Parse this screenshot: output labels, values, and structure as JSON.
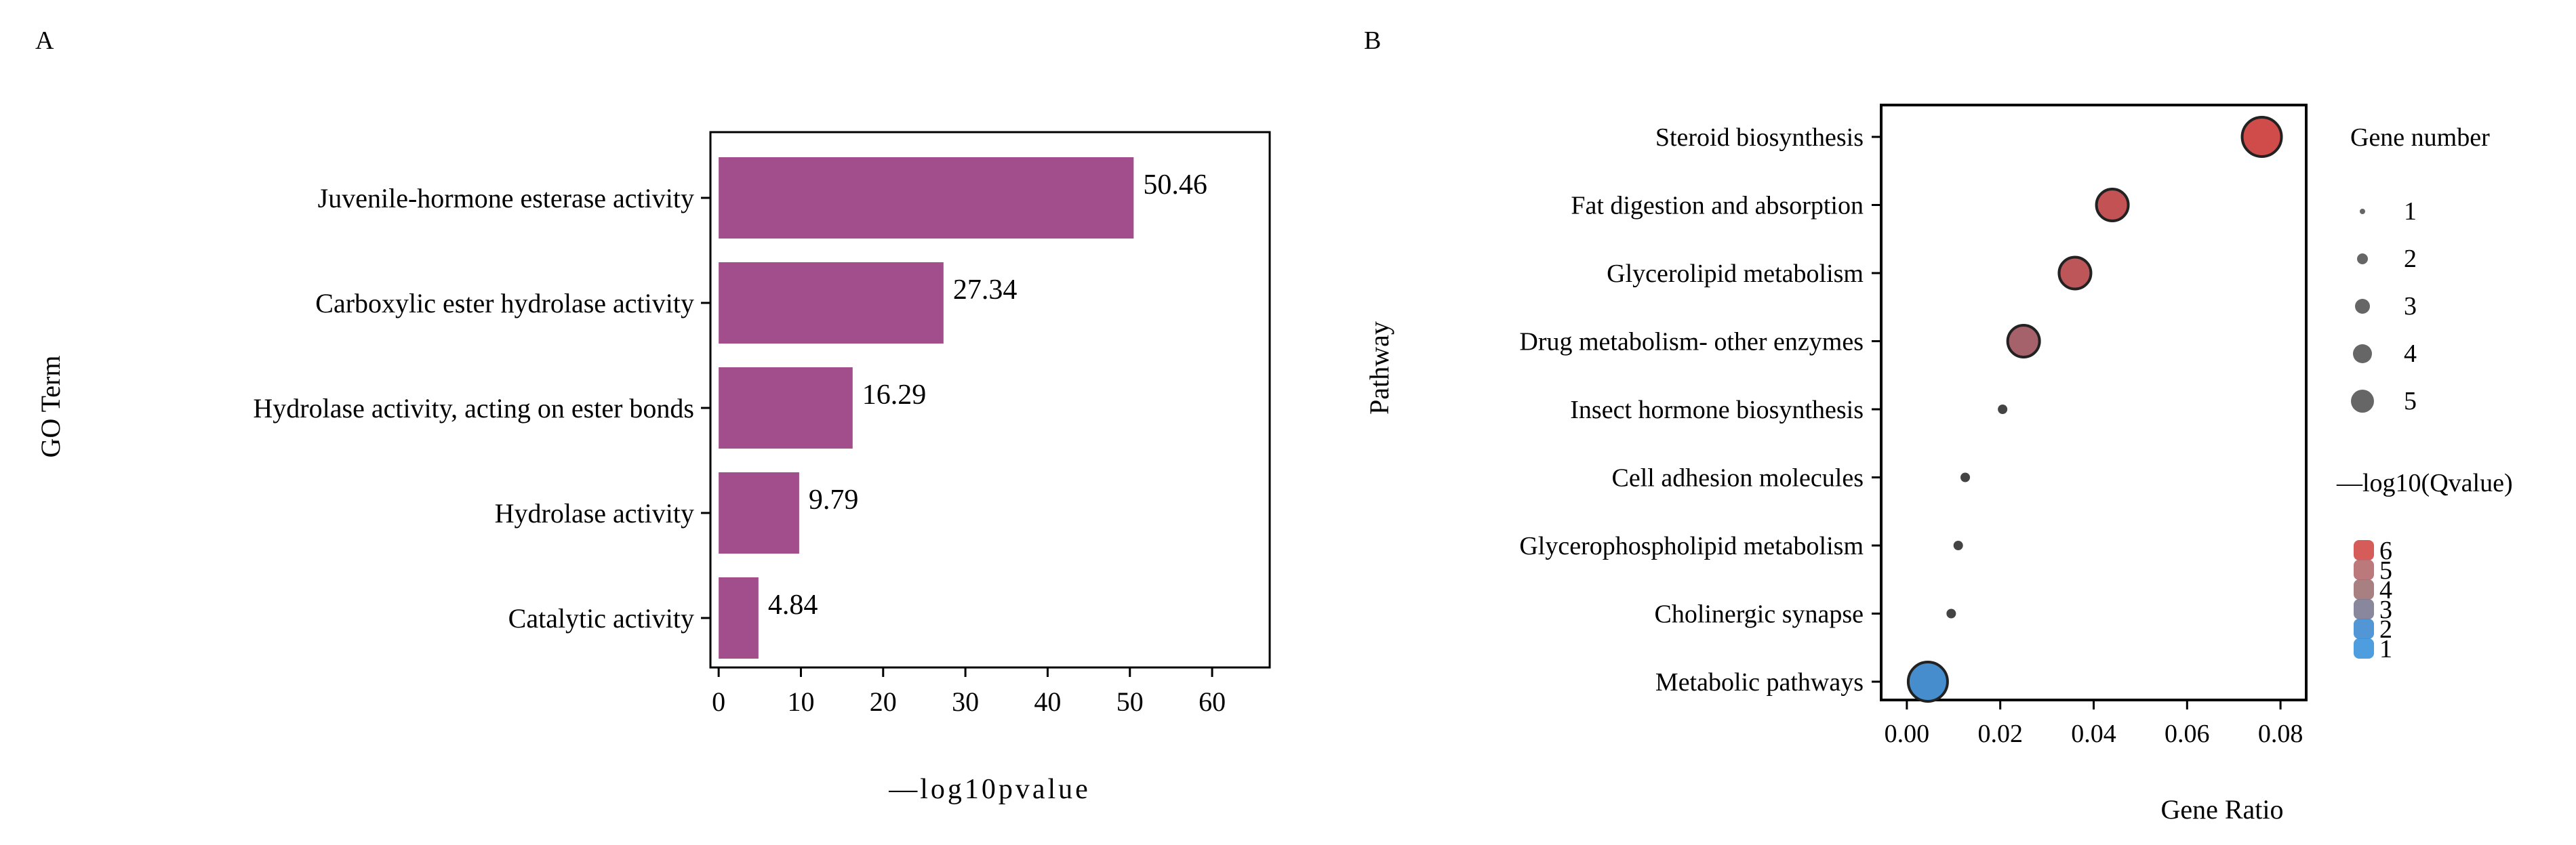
{
  "chart_data": [
    {
      "panel_label": "A",
      "type": "bar",
      "orientation": "horizontal",
      "categories": [
        "Juvenile-hormone esterase activity",
        "Carboxylic ester hydrolase activity",
        "Hydrolase activity, acting on ester bonds",
        "Hydrolase activity",
        "Catalytic activity"
      ],
      "values": [
        50.46,
        27.34,
        16.29,
        9.79,
        4.84
      ],
      "value_labels": [
        "50.46",
        "27.34",
        "16.29",
        "9.79",
        "4.84"
      ],
      "xlabel": "—log10pvalue",
      "ylabel": "GO Term",
      "xlim": [
        -1,
        67
      ],
      "xticks": [
        0,
        10,
        20,
        30,
        40,
        50,
        60
      ],
      "bar_color": "#a24e8d"
    },
    {
      "panel_label": "B",
      "type": "scatter",
      "pathways": [
        "Steroid biosynthesis",
        "Fat digestion and absorption",
        "Glycerolipid metabolism",
        "Drug metabolism- other enzymes",
        "Insect hormone biosynthesis",
        "Cell adhesion molecules",
        "Glycerophospholipid metabolism",
        "Cholinergic synapse",
        "Metabolic pathways"
      ],
      "gene_ratio": [
        0.076,
        0.044,
        0.036,
        0.025,
        0.0205,
        0.0125,
        0.011,
        0.0095,
        0.0045
      ],
      "gene_number": [
        5,
        4,
        4,
        4,
        1,
        1,
        1,
        1,
        5
      ],
      "neg_log10_q": [
        5.9,
        5.5,
        5.3,
        4.6,
        3.2,
        3.1,
        3.0,
        2.9,
        1.4
      ],
      "xlabel": "Gene Ratio",
      "ylabel": "Pathway",
      "xlim": [
        -0.0055,
        0.0855
      ],
      "xticks": [
        0.0,
        0.02,
        0.04,
        0.06,
        0.08
      ],
      "xtick_labels": [
        "0.00",
        "0.02",
        "0.04",
        "0.06",
        "0.08"
      ],
      "size_legend": {
        "title": "Gene number",
        "values": [
          1,
          2,
          3,
          4,
          5
        ],
        "labels": [
          "1",
          "2",
          "3",
          "4",
          "5"
        ]
      },
      "color_legend": {
        "title": "—log10(Qvalue)",
        "values": [
          6,
          5,
          4,
          3,
          2,
          1
        ],
        "labels": [
          "6",
          "5",
          "4",
          "3",
          "2",
          "1"
        ],
        "colors": [
          "#d24a48",
          "#b46a6e",
          "#a07273",
          "#7c7a93",
          "#3f8bd0",
          "#3a92dc"
        ]
      }
    }
  ]
}
